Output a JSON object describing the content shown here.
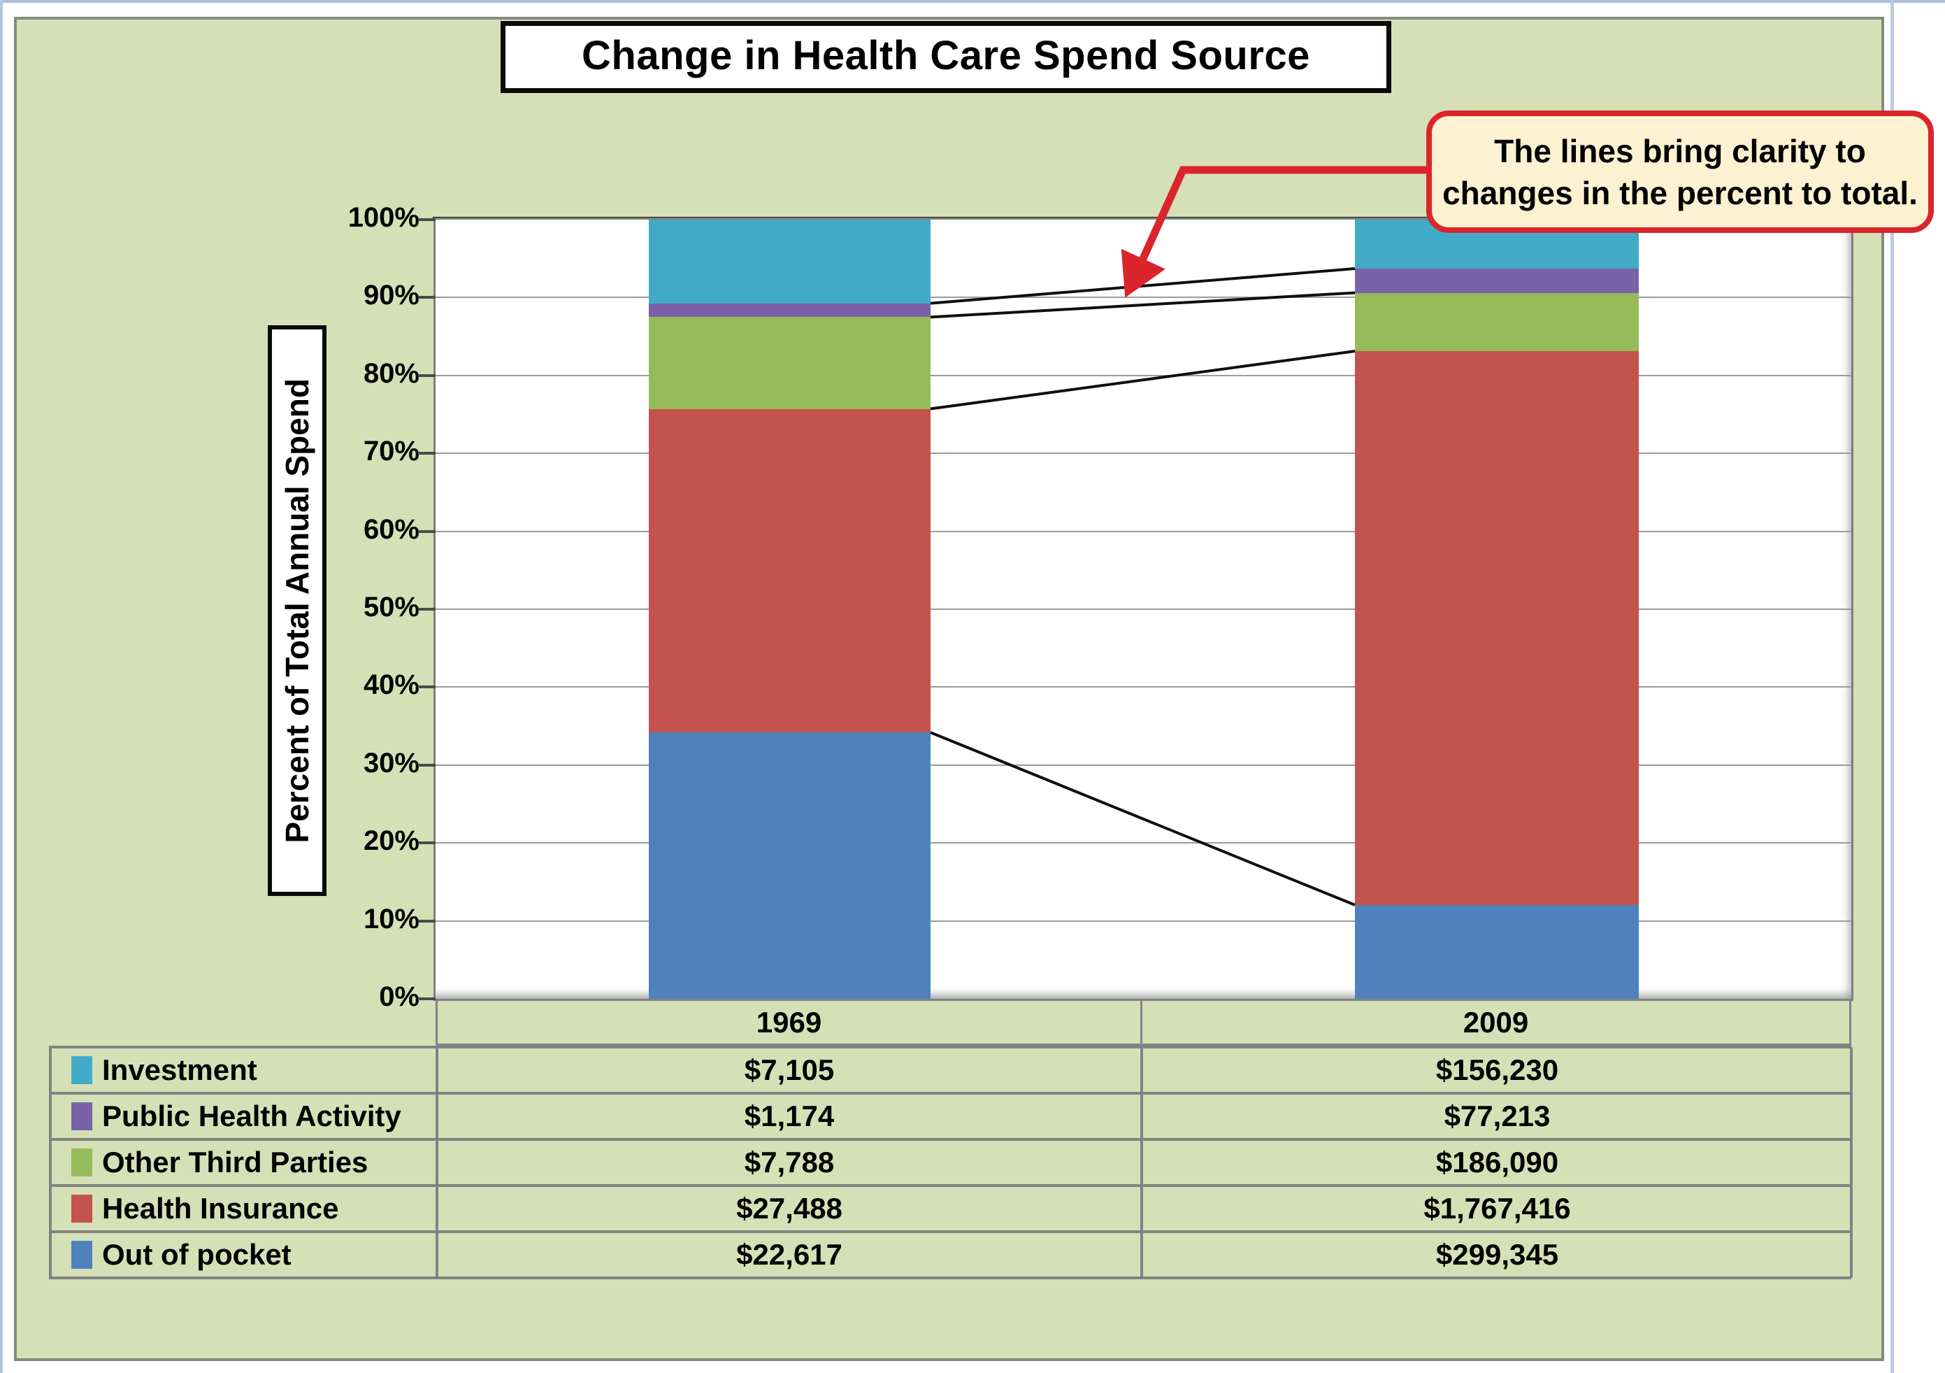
{
  "title": {
    "text": "Change in Health Care Spend Source"
  },
  "y_axis": {
    "title": "Percent of Total Annual Spend"
  },
  "callout": {
    "line1": "The lines bring clarity to",
    "line2": "changes in the percent to total.",
    "bg": "#FCF1D1",
    "border_color": "#D9252B"
  },
  "colors": {
    "panel_bg": "#D6E0B6",
    "grid": "#9C9C9C",
    "table_border": "#828282",
    "connector_line": "#0F0F0F"
  },
  "chart_data": {
    "type": "bar",
    "subtype": "100%-stacked-column-with-connector-lines",
    "title": "Change in Health Care Spend Source",
    "ylabel": "Percent of Total Annual Spend",
    "categories": [
      "1969",
      "2009"
    ],
    "series": [
      {
        "name": "Out of pocket",
        "color": "#4F81BD",
        "values": [
          22617,
          299345
        ],
        "display": [
          "$22,617",
          "$299,345"
        ]
      },
      {
        "name": "Health Insurance",
        "color": "#C4524E",
        "values": [
          27488,
          1767416
        ],
        "display": [
          "$27,488",
          "$1,767,416"
        ]
      },
      {
        "name": "Other Third Parties",
        "color": "#95BB5B",
        "values": [
          7788,
          186090
        ],
        "display": [
          "$7,788",
          "$186,090"
        ]
      },
      {
        "name": "Public Health Activity",
        "color": "#7A62A8",
        "values": [
          1174,
          77213
        ],
        "display": [
          "$1,174",
          "$77,213"
        ]
      },
      {
        "name": "Investment",
        "color": "#41ABC7",
        "values": [
          7105,
          156230
        ],
        "display": [
          "$7,105",
          "$156,230"
        ]
      }
    ],
    "percent_of_total": {
      "1969": {
        "Out of pocket": 34.2,
        "Health Insurance": 41.5,
        "Other Third Parties": 11.8,
        "Public Health Activity": 1.8,
        "Investment": 10.7
      },
      "2009": {
        "Out of pocket": 12.0,
        "Health Insurance": 71.1,
        "Other Third Parties": 7.5,
        "Public Health Activity": 3.1,
        "Investment": 6.3
      }
    },
    "y_tick_labels": [
      "0%",
      "10%",
      "20%",
      "30%",
      "40%",
      "50%",
      "60%",
      "70%",
      "80%",
      "90%",
      "100%"
    ],
    "ylim": [
      0,
      100
    ],
    "grid": true,
    "legend_position": "table-below-left-column",
    "annotation": "The lines bring clarity to changes in the percent to total."
  },
  "legend_table": {
    "col_headers": [
      "1969",
      "2009"
    ],
    "rows": [
      {
        "label": "Investment",
        "v1969": "$7,105",
        "v2009": "$156,230"
      },
      {
        "label": "Public Health Activity",
        "v1969": "$1,174",
        "v2009": "$77,213"
      },
      {
        "label": "Other Third Parties",
        "v1969": "$7,788",
        "v2009": "$186,090"
      },
      {
        "label": "Health Insurance",
        "v1969": "$27,488",
        "v2009": "$1,767,416"
      },
      {
        "label": "Out of pocket",
        "v1969": "$22,617",
        "v2009": "$299,345"
      }
    ]
  }
}
